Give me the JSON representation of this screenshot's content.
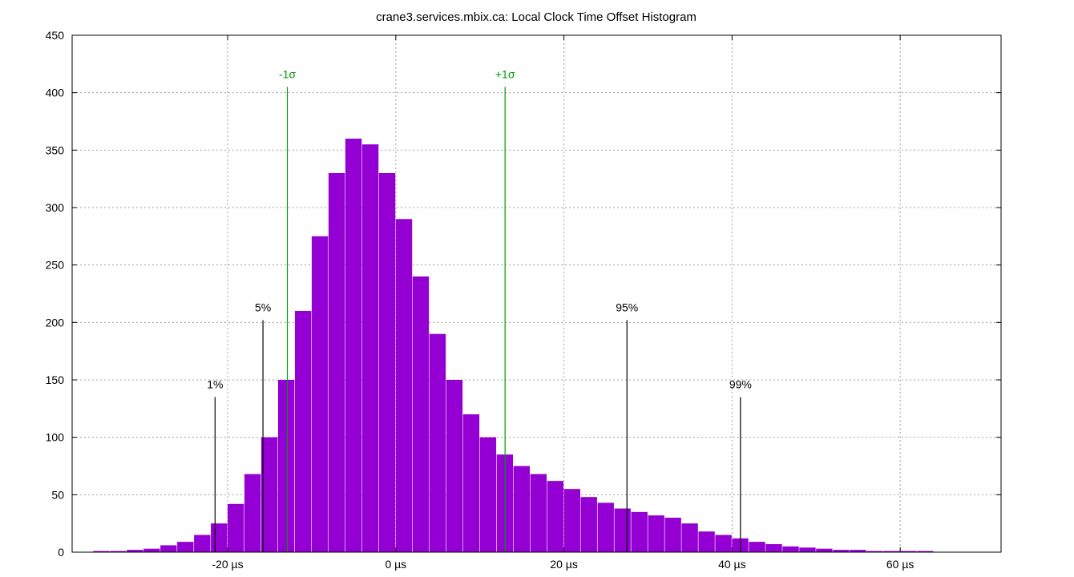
{
  "chart_data": {
    "type": "bar",
    "title": "crane3.services.mbix.ca: Local Clock Time Offset Histogram",
    "xlabel": "",
    "ylabel": "",
    "x_unit": "µs",
    "xlim": [
      -38.5,
      72
    ],
    "ylim": [
      0,
      450
    ],
    "x_ticks": [
      -20,
      0,
      20,
      40,
      60
    ],
    "x_tick_labels": [
      "-20 µs",
      "0 µs",
      "20 µs",
      "40 µs",
      "60 µs"
    ],
    "y_ticks": [
      0,
      50,
      100,
      150,
      200,
      250,
      300,
      350,
      400,
      450
    ],
    "y_tick_labels": [
      "0",
      "50",
      "100",
      "150",
      "200",
      "250",
      "300",
      "350",
      "400",
      "450"
    ],
    "grid": true,
    "bar_color": "#9400d3",
    "series": [
      {
        "bin_width": 2,
        "x": [
          -37,
          -35,
          -33,
          -31,
          -29,
          -27,
          -25,
          -23,
          -21,
          -19,
          -17,
          -15,
          -13,
          -11,
          -9,
          -7,
          -5,
          -3,
          -1,
          1,
          3,
          5,
          7,
          9,
          11,
          13,
          15,
          17,
          19,
          21,
          23,
          25,
          27,
          29,
          31,
          33,
          35,
          37,
          39,
          41,
          43,
          45,
          47,
          49,
          51,
          53,
          55,
          57,
          59,
          61,
          63,
          65,
          67,
          69,
          71
        ],
        "values": [
          0,
          1,
          1,
          2,
          3,
          6,
          9,
          15,
          25,
          42,
          68,
          100,
          150,
          210,
          275,
          330,
          360,
          355,
          330,
          290,
          240,
          190,
          150,
          120,
          100,
          85,
          75,
          68,
          62,
          55,
          48,
          43,
          38,
          35,
          32,
          30,
          25,
          18,
          15,
          12,
          9,
          7,
          5,
          4,
          3,
          2,
          2,
          1,
          1,
          1,
          1,
          0,
          0,
          0,
          0
        ]
      }
    ],
    "markers": [
      {
        "label": "1%",
        "x": -21.5,
        "height": 135,
        "color": "#000000"
      },
      {
        "label": "5%",
        "x": -15.8,
        "height": 202,
        "color": "#000000"
      },
      {
        "label": "-1σ",
        "x": -12.9,
        "height": 405,
        "color": "#009900"
      },
      {
        "label": "+1σ",
        "x": 13.0,
        "height": 405,
        "color": "#009900"
      },
      {
        "label": "95%",
        "x": 27.5,
        "height": 202,
        "color": "#000000"
      },
      {
        "label": "99%",
        "x": 41.0,
        "height": 135,
        "color": "#000000"
      }
    ]
  }
}
